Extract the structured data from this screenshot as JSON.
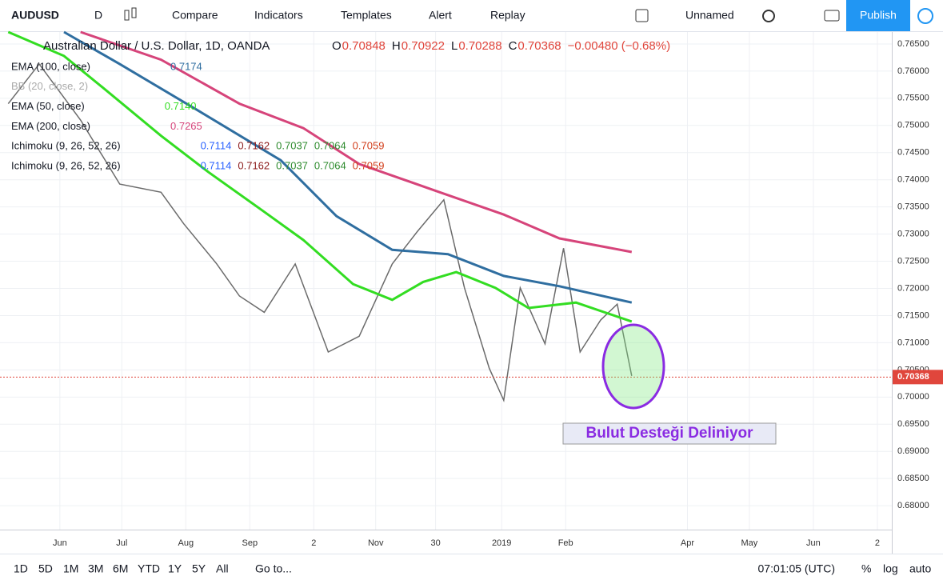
{
  "toolbar": {
    "symbol": "AUDUSD",
    "interval": "D",
    "buttons": [
      "Compare",
      "Indicators",
      "Templates",
      "Alert",
      "Replay"
    ],
    "layout_name": "Unnamed",
    "publish": "Publish"
  },
  "chart_data": {
    "type": "line",
    "ohlc": [
      {
        "label": "O",
        "value": "0.70848"
      },
      {
        "label": "H",
        "value": "0.70922"
      },
      {
        "label": "L",
        "value": "0.70288"
      },
      {
        "label": "C",
        "value": "0.70368"
      }
    ],
    "change": "−0.00480 (−0.68%)",
    "series": [
      {
        "name": "Australian Dollar / U.S. Dollar, 1D, OANDA",
        "color": "#6b6b6b",
        "x": [
          6,
          21,
          41,
          60,
          80,
          91,
          107,
          118,
          130,
          145,
          161,
          176,
          192,
          204,
          217,
          227,
          239,
          246,
          254,
          266,
          275,
          283,
          293,
          301,
          308
        ],
        "values": [
          0.754,
          0.7613,
          0.751,
          0.7392,
          0.7377,
          0.7319,
          0.7245,
          0.7186,
          0.7156,
          0.7245,
          0.7083,
          0.7112,
          0.7245,
          0.7304,
          0.7363,
          0.7201,
          0.7053,
          0.6994,
          0.7201,
          0.7098,
          0.7274,
          0.7083,
          0.7142,
          0.7171,
          0.7039
        ]
      },
      {
        "name": "EMA (100, close)",
        "color": "#2f6ea0",
        "legend_value": "0.7174",
        "x": [
          33,
          60,
          99,
          138,
          165,
          192,
          219,
          246,
          273,
          308
        ],
        "values": [
          0.7672,
          0.7613,
          0.7525,
          0.7436,
          0.7333,
          0.7271,
          0.7263,
          0.7223,
          0.7204,
          0.7174
        ]
      },
      {
        "name": "EMA (50, close)",
        "color": "#33dd22",
        "legend_value": "0.7140",
        "x": [
          6,
          33,
          52,
          80,
          103,
          130,
          149,
          173,
          192,
          207,
          223,
          242,
          258,
          281,
          308
        ],
        "values": [
          0.7672,
          0.7628,
          0.7569,
          0.7481,
          0.7414,
          0.7341,
          0.7289,
          0.7208,
          0.7179,
          0.7212,
          0.723,
          0.7201,
          0.7164,
          0.7174,
          0.7139
        ]
      },
      {
        "name": "EMA (200, close)",
        "color": "#d6447a",
        "legend_value": "0.7265",
        "x": [
          41,
          80,
          118,
          149,
          176,
          215,
          246,
          273,
          308
        ],
        "values": [
          0.7672,
          0.7621,
          0.754,
          0.7495,
          0.7429,
          0.7377,
          0.7336,
          0.7292,
          0.7267
        ]
      }
    ],
    "other_indicators": [
      {
        "name": "BB (20, close, 2)",
        "values": [],
        "colors": []
      },
      {
        "name": "Ichimoku (9, 26, 52, 26)",
        "values": [
          "0.7114",
          "0.7162",
          "0.7037",
          "0.7064",
          "0.7059"
        ],
        "colors": [
          "#2962ff",
          "#8b1a1a",
          "#2e8b2e",
          "#2e8b2e",
          "#d2401e"
        ]
      },
      {
        "name": "Ichimoku (9, 26, 52, 26)",
        "values": [
          "0.7114",
          "0.7162",
          "0.7037",
          "0.7064",
          "0.7059"
        ],
        "colors": [
          "#2962ff",
          "#8b1a1a",
          "#2e8b2e",
          "#2e8b2e",
          "#d2401e"
        ]
      }
    ],
    "last_price": {
      "value": 0.70368,
      "label": "0.70368"
    },
    "annotation": "Bulut Desteği Deliniyor",
    "grid": true,
    "xlim": [
      2,
      434
    ],
    "xticks": [
      {
        "value": 31,
        "label": "Jun"
      },
      {
        "value": 61,
        "label": "Jul"
      },
      {
        "value": 92,
        "label": "Aug"
      },
      {
        "value": 123,
        "label": "Sep"
      },
      {
        "value": 154,
        "label": "2"
      },
      {
        "value": 184,
        "label": "Nov"
      },
      {
        "value": 213,
        "label": "30"
      },
      {
        "value": 245,
        "label": "2019"
      },
      {
        "value": 276,
        "label": "Feb"
      },
      {
        "value": 335,
        "label": "Apr"
      },
      {
        "value": 365,
        "label": "May"
      },
      {
        "value": 396,
        "label": "Jun"
      },
      {
        "value": 427,
        "label": "2"
      }
    ],
    "ylim": [
      0.6756,
      0.7672
    ],
    "yticks": [
      {
        "value": 0.765,
        "label": "0.76500"
      },
      {
        "value": 0.76,
        "label": "0.76000"
      },
      {
        "value": 0.755,
        "label": "0.75500"
      },
      {
        "value": 0.75,
        "label": "0.75000"
      },
      {
        "value": 0.745,
        "label": "0.74500"
      },
      {
        "value": 0.74,
        "label": "0.74000"
      },
      {
        "value": 0.735,
        "label": "0.73500"
      },
      {
        "value": 0.73,
        "label": "0.73000"
      },
      {
        "value": 0.725,
        "label": "0.72500"
      },
      {
        "value": 0.72,
        "label": "0.72000"
      },
      {
        "value": 0.715,
        "label": "0.71500"
      },
      {
        "value": 0.71,
        "label": "0.71000"
      },
      {
        "value": 0.705,
        "label": "0.70500"
      },
      {
        "value": 0.7,
        "label": "0.70000"
      },
      {
        "value": 0.695,
        "label": "0.69500"
      },
      {
        "value": 0.69,
        "label": "0.69000"
      },
      {
        "value": 0.685,
        "label": "0.68500"
      },
      {
        "value": 0.68,
        "label": "0.68000"
      }
    ]
  },
  "bottom_bar": {
    "ranges": [
      "1D",
      "5D",
      "1M",
      "3M",
      "6M",
      "YTD",
      "1Y",
      "5Y",
      "All"
    ],
    "goto": "Go to...",
    "clock": "07:01:05 (UTC)",
    "options": [
      "%",
      "log",
      "auto"
    ]
  }
}
